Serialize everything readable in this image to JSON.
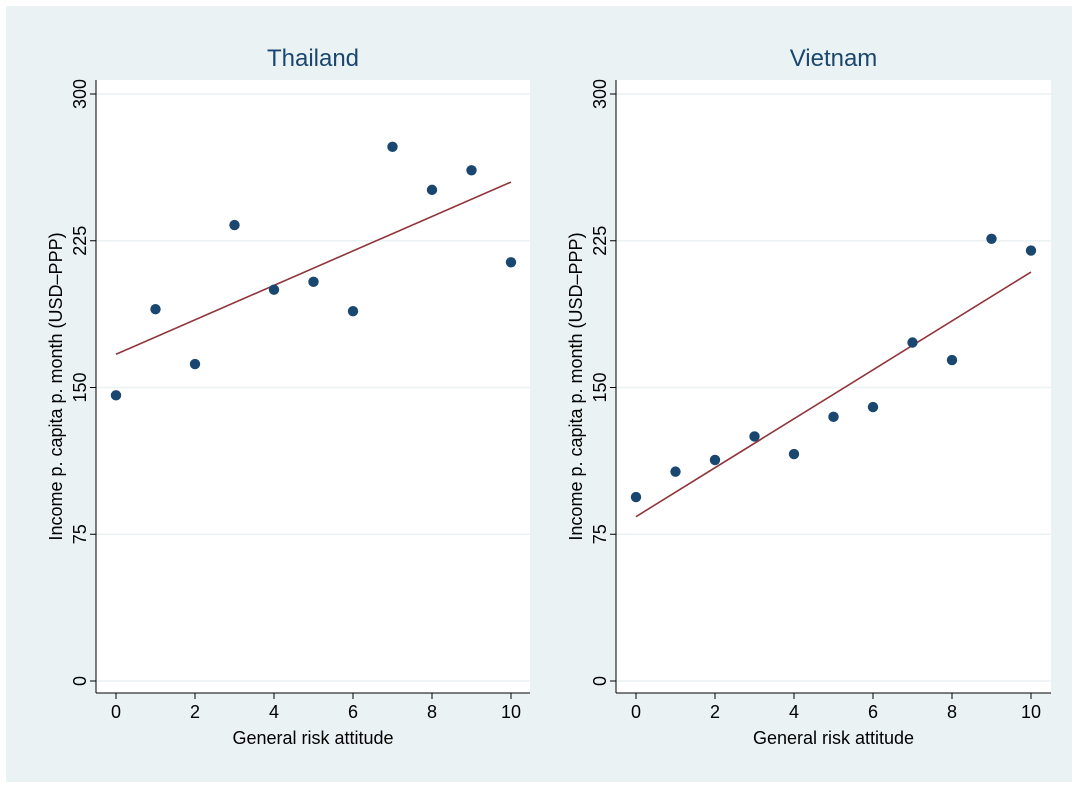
{
  "chart_data": [
    {
      "type": "scatter",
      "title": "Thailand",
      "xlabel": "General risk attitude",
      "ylabel": "Income p. capita p. month (USD–PPP)",
      "xlim": [
        0,
        10
      ],
      "ylim": [
        0,
        300
      ],
      "xticks": [
        0,
        2,
        4,
        6,
        8,
        10
      ],
      "yticks": [
        0,
        75,
        150,
        225,
        300
      ],
      "grid": "horizontal",
      "x": [
        0,
        1,
        2,
        3,
        4,
        5,
        6,
        7,
        8,
        9,
        10
      ],
      "y": [
        146,
        190,
        162,
        233,
        200,
        204,
        189,
        273,
        251,
        261,
        214
      ],
      "fit_line": {
        "x": [
          0,
          10
        ],
        "y": [
          167,
          255
        ]
      }
    },
    {
      "type": "scatter",
      "title": "Vietnam",
      "xlabel": "General risk attitude",
      "ylabel": "Income p. capita p. month (USD–PPP)",
      "xlim": [
        0,
        10
      ],
      "ylim": [
        0,
        300
      ],
      "xticks": [
        0,
        2,
        4,
        6,
        8,
        10
      ],
      "yticks": [
        0,
        75,
        150,
        225,
        300
      ],
      "grid": "horizontal",
      "x": [
        0,
        1,
        2,
        3,
        4,
        5,
        6,
        7,
        8,
        9,
        10
      ],
      "y": [
        94,
        107,
        113,
        125,
        116,
        135,
        140,
        173,
        164,
        226,
        220
      ],
      "fit_line": {
        "x": [
          0,
          10
        ],
        "y": [
          84,
          209
        ]
      }
    }
  ],
  "colors": {
    "background": "#eaf2f3",
    "plot_background": "#ffffff",
    "gridline": "#eaf2f3",
    "marker": "#1a476f",
    "fit_line": "#90353b",
    "title": "#1a476f"
  }
}
